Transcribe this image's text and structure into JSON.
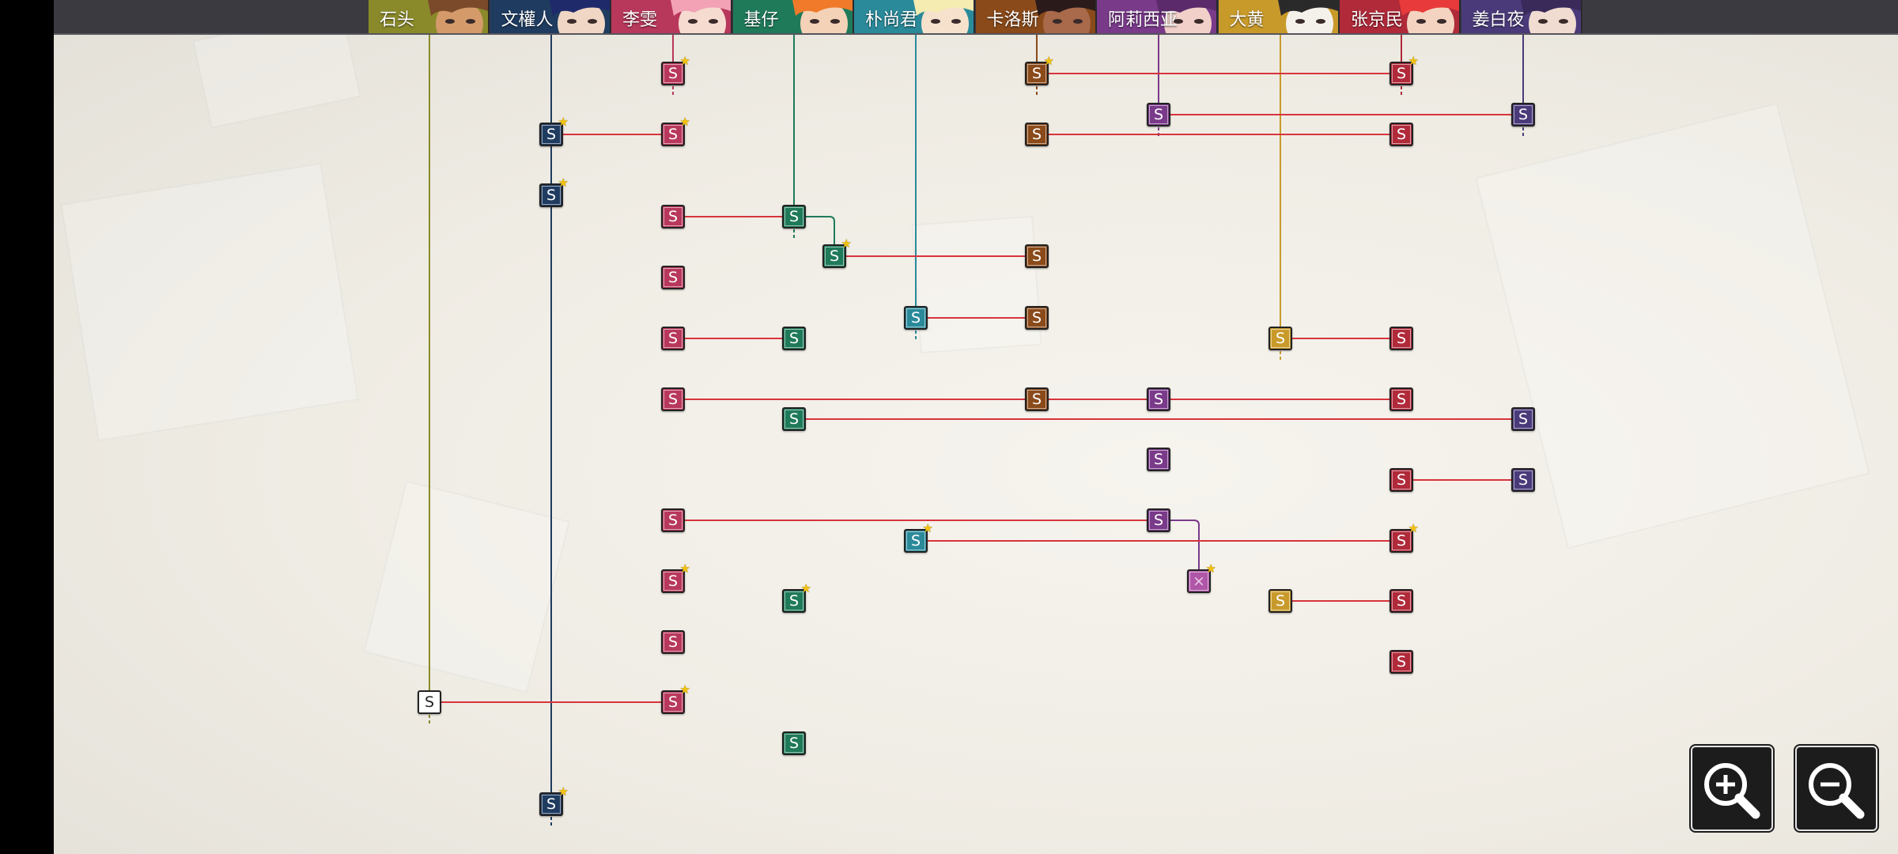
{
  "characters": [
    {
      "id": "c1",
      "name": "石头",
      "color": "#8a8a2a",
      "face": "#d49a6a",
      "hair": "#7a4a2a"
    },
    {
      "id": "c2",
      "name": "文權人",
      "color": "#1f3b60",
      "face": "#f0d6c4",
      "hair": "#1f2a6a"
    },
    {
      "id": "c3",
      "name": "李雯",
      "color": "#b8385c",
      "face": "#f6dbd0",
      "hair": "#f2a2b4"
    },
    {
      "id": "c4",
      "name": "基仔",
      "color": "#1f7a5a",
      "face": "#f4d2b8",
      "hair": "#f07a2a"
    },
    {
      "id": "c5",
      "name": "朴尚君",
      "color": "#2a8a9a",
      "face": "#f6e2cc",
      "hair": "#f4ecb0"
    },
    {
      "id": "c6",
      "name": "卡洛斯",
      "color": "#8a4a1a",
      "face": "#a86a4a",
      "hair": "#2a1a1a"
    },
    {
      "id": "c7",
      "name": "阿莉西亚",
      "color": "#7a3a8a",
      "face": "#f0d0c8",
      "hair": "#5a2a6a"
    },
    {
      "id": "c8",
      "name": "大黄",
      "color": "#c89a2a",
      "face": "#f4f0ea",
      "hair": "#2a2a2a"
    },
    {
      "id": "c9",
      "name": "张京民",
      "color": "#b02a3a",
      "face": "#f4d4c0",
      "hair": "#e83a3a"
    },
    {
      "id": "c10",
      "name": "姜白夜",
      "color": "#4a3a7a",
      "face": "#f0dcd0",
      "hair": "#3a2a5a"
    }
  ],
  "node_label": "S",
  "locked_label": "×",
  "star_label": "★",
  "nodes": [
    {
      "id": "n1",
      "col": 3,
      "row": 93,
      "star": true
    },
    {
      "id": "n2",
      "col": 6,
      "row": 93,
      "star": true
    },
    {
      "id": "n3",
      "col": 9,
      "row": 93,
      "star": true
    },
    {
      "id": "n4",
      "col": 7,
      "row": 145
    },
    {
      "id": "n5",
      "col": 10,
      "row": 145
    },
    {
      "id": "n6",
      "col": 2,
      "row": 170,
      "star": true
    },
    {
      "id": "n7",
      "col": 3,
      "row": 170,
      "star": true
    },
    {
      "id": "n8",
      "col": 6,
      "row": 170
    },
    {
      "id": "n9",
      "col": 9,
      "row": 170
    },
    {
      "id": "n10",
      "col": 2,
      "row": 247,
      "star": true
    },
    {
      "id": "n11",
      "col": 3,
      "row": 274
    },
    {
      "id": "n12",
      "col": 4,
      "row": 274
    },
    {
      "id": "n13",
      "col": "b1",
      "row": 324,
      "star": true
    },
    {
      "id": "n14",
      "col": 6,
      "row": 324
    },
    {
      "id": "n15",
      "col": 3,
      "row": 351
    },
    {
      "id": "n16",
      "col": 5,
      "row": 402
    },
    {
      "id": "n17",
      "col": 6,
      "row": 402
    },
    {
      "id": "n18",
      "col": 3,
      "row": 428
    },
    {
      "id": "n19",
      "col": 4,
      "row": 428
    },
    {
      "id": "n20",
      "col": 8,
      "row": 428
    },
    {
      "id": "n21",
      "col": 9,
      "row": 428
    },
    {
      "id": "n22",
      "col": 3,
      "row": 505
    },
    {
      "id": "n23",
      "col": 6,
      "row": 505
    },
    {
      "id": "n24",
      "col": 7,
      "row": 505
    },
    {
      "id": "n25",
      "col": 9,
      "row": 505
    },
    {
      "id": "n26",
      "col": 4,
      "row": 530
    },
    {
      "id": "n27",
      "col": 10,
      "row": 530
    },
    {
      "id": "n28",
      "col": 7,
      "row": 581
    },
    {
      "id": "n29",
      "col": 9,
      "row": 607
    },
    {
      "id": "n30",
      "col": 10,
      "row": 607
    },
    {
      "id": "n31",
      "col": 3,
      "row": 658
    },
    {
      "id": "n32",
      "col": 7,
      "row": 658
    },
    {
      "id": "n33",
      "col": 5,
      "row": 684,
      "star": true
    },
    {
      "id": "n34",
      "col": 9,
      "row": 684,
      "star": true
    },
    {
      "id": "n35",
      "col": "b2",
      "row": 735,
      "star": true,
      "locked": true
    },
    {
      "id": "n36",
      "col": 3,
      "row": 735,
      "star": true
    },
    {
      "id": "n37",
      "col": 4,
      "row": 760,
      "star": true
    },
    {
      "id": "n38",
      "col": 8,
      "row": 760
    },
    {
      "id": "n39",
      "col": 9,
      "row": 760
    },
    {
      "id": "n40",
      "col": 3,
      "row": 812
    },
    {
      "id": "n41",
      "col": 9,
      "row": 837
    },
    {
      "id": "n42",
      "col": 1,
      "row": 888,
      "blank": true
    },
    {
      "id": "n43",
      "col": 3,
      "row": 888,
      "star": true
    },
    {
      "id": "n44",
      "col": 4,
      "row": 940
    },
    {
      "id": "n45",
      "col": 2,
      "row": 1017,
      "star": true
    }
  ],
  "links": [
    [
      "n2",
      "n3"
    ],
    [
      "n4",
      "n5"
    ],
    [
      "n6",
      "n7"
    ],
    [
      "n8",
      "n9"
    ],
    [
      "n11",
      "n12"
    ],
    [
      "n12",
      "n13",
      "elbow"
    ],
    [
      "n13",
      "n14"
    ],
    [
      "n16",
      "n17"
    ],
    [
      "n18",
      "n19"
    ],
    [
      "n20",
      "n21"
    ],
    [
      "n22",
      "n23"
    ],
    [
      "n23",
      "n25"
    ],
    [
      "n24",
      "n25"
    ],
    [
      "n26",
      "n27"
    ],
    [
      "n29",
      "n30"
    ],
    [
      "n31",
      "n32"
    ],
    [
      "n32",
      "n35",
      "elbow"
    ],
    [
      "n33",
      "n34"
    ],
    [
      "n38",
      "n39"
    ],
    [
      "n42",
      "n43"
    ]
  ],
  "zoom": {
    "in_icon": "zoom-in-icon",
    "out_icon": "zoom-out-icon"
  }
}
